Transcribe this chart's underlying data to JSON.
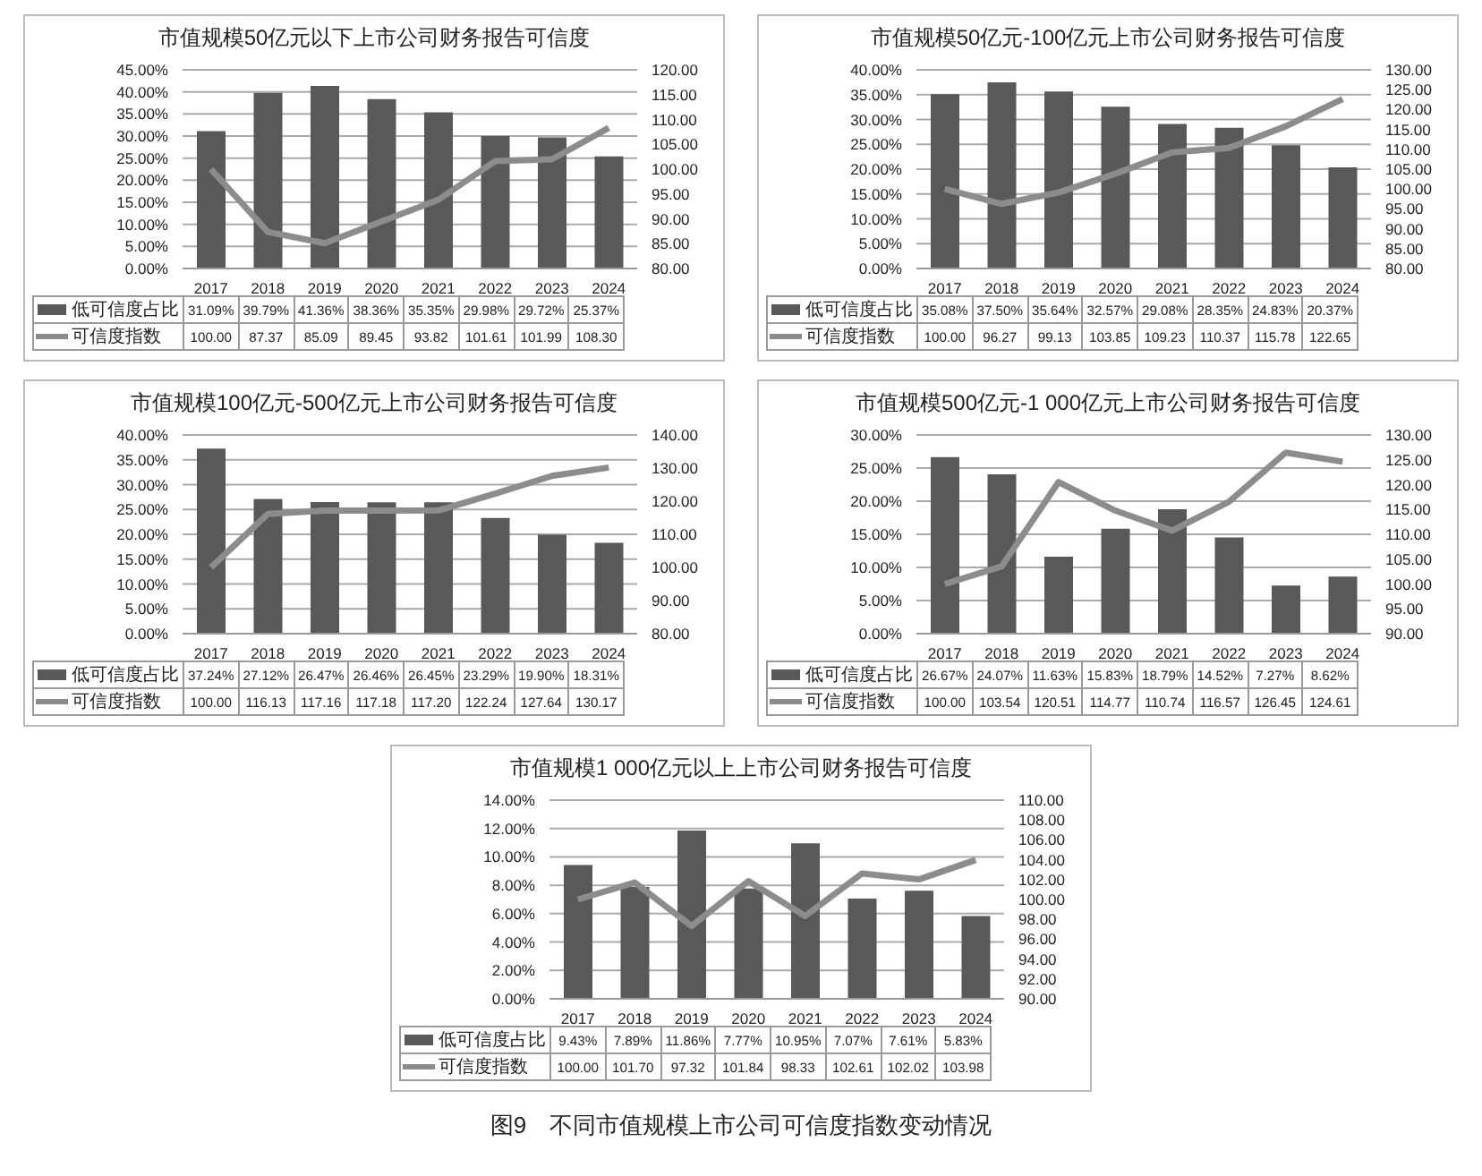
{
  "chart_data": [
    {
      "type": "bar",
      "title": "市值规模50亿元以下上市公司财务报告可信度",
      "categories": [
        "2017",
        "2018",
        "2019",
        "2020",
        "2021",
        "2022",
        "2023",
        "2024"
      ],
      "grid": "y",
      "legend": "bottom",
      "ylim": [
        0,
        45
      ],
      "yticks": [
        {
          "value": 0,
          "label": "0.00%"
        },
        {
          "value": 5,
          "label": "5.00%"
        },
        {
          "value": 10,
          "label": "10.00%"
        },
        {
          "value": 15,
          "label": "15.00%"
        },
        {
          "value": 20,
          "label": "20.00%"
        },
        {
          "value": 25,
          "label": "25.00%"
        },
        {
          "value": 30,
          "label": "30.00%"
        },
        {
          "value": 35,
          "label": "35.00%"
        },
        {
          "value": 40,
          "label": "40.00%"
        },
        {
          "value": 45,
          "label": "45.00%"
        }
      ],
      "y2lim": [
        80,
        120
      ],
      "y2ticks": [
        {
          "value": 80,
          "label": "80.00"
        },
        {
          "value": 85,
          "label": "85.00"
        },
        {
          "value": 90,
          "label": "90.00"
        },
        {
          "value": 95,
          "label": "95.00"
        },
        {
          "value": 100,
          "label": "100.00"
        },
        {
          "value": 105,
          "label": "105.00"
        },
        {
          "value": 110,
          "label": "110.00"
        },
        {
          "value": 115,
          "label": "115.00"
        },
        {
          "value": 120,
          "label": "120.00"
        }
      ],
      "series": [
        {
          "name": "低可信度占比",
          "color": "#595959",
          "values": [
            31.09,
            39.79,
            41.36,
            38.36,
            35.35,
            29.98,
            29.72,
            25.37
          ],
          "value_labels": [
            "31.09%",
            "39.79%",
            "41.36%",
            "38.36%",
            "35.35%",
            "29.98%",
            "29.72%",
            "25.37%"
          ]
        },
        {
          "name": "可信度指数",
          "type": "line",
          "axis": "y2",
          "color": "#8c8c8c",
          "values": [
            100.0,
            87.37,
            85.09,
            89.45,
            93.82,
            101.61,
            101.99,
            108.3
          ],
          "value_labels": [
            "100.00",
            "87.37",
            "85.09",
            "89.45",
            "93.82",
            "101.61",
            "101.99",
            "108.30"
          ]
        }
      ]
    },
    {
      "type": "bar",
      "title": "市值规模50亿元-100亿元上市公司财务报告可信度",
      "categories": [
        "2017",
        "2018",
        "2019",
        "2020",
        "2021",
        "2022",
        "2023",
        "2024"
      ],
      "grid": "y",
      "legend": "bottom",
      "ylim": [
        0,
        40
      ],
      "yticks": [
        {
          "value": 0,
          "label": "0.00%"
        },
        {
          "value": 5,
          "label": "5.00%"
        },
        {
          "value": 10,
          "label": "10.00%"
        },
        {
          "value": 15,
          "label": "15.00%"
        },
        {
          "value": 20,
          "label": "20.00%"
        },
        {
          "value": 25,
          "label": "25.00%"
        },
        {
          "value": 30,
          "label": "30.00%"
        },
        {
          "value": 35,
          "label": "35.00%"
        },
        {
          "value": 40,
          "label": "40.00%"
        }
      ],
      "y2lim": [
        80,
        130
      ],
      "y2ticks": [
        {
          "value": 80,
          "label": "80.00"
        },
        {
          "value": 85,
          "label": "85.00"
        },
        {
          "value": 90,
          "label": "90.00"
        },
        {
          "value": 95,
          "label": "95.00"
        },
        {
          "value": 100,
          "label": "100.00"
        },
        {
          "value": 105,
          "label": "105.00"
        },
        {
          "value": 110,
          "label": "110.00"
        },
        {
          "value": 115,
          "label": "115.00"
        },
        {
          "value": 120,
          "label": "120.00"
        },
        {
          "value": 125,
          "label": "125.00"
        },
        {
          "value": 130,
          "label": "130.00"
        }
      ],
      "series": [
        {
          "name": "低可信度占比",
          "color": "#595959",
          "values": [
            35.08,
            37.5,
            35.64,
            32.57,
            29.08,
            28.35,
            24.83,
            20.37
          ],
          "value_labels": [
            "35.08%",
            "37.50%",
            "35.64%",
            "32.57%",
            "29.08%",
            "28.35%",
            "24.83%",
            "20.37%"
          ]
        },
        {
          "name": "可信度指数",
          "type": "line",
          "axis": "y2",
          "color": "#8c8c8c",
          "values": [
            100.0,
            96.27,
            99.13,
            103.85,
            109.23,
            110.37,
            115.78,
            122.65
          ],
          "value_labels": [
            "100.00",
            "96.27",
            "99.13",
            "103.85",
            "109.23",
            "110.37",
            "115.78",
            "122.65"
          ]
        }
      ]
    },
    {
      "type": "bar",
      "title": "市值规模100亿元-500亿元上市公司财务报告可信度",
      "categories": [
        "2017",
        "2018",
        "2019",
        "2020",
        "2021",
        "2022",
        "2023",
        "2024"
      ],
      "grid": "y",
      "legend": "bottom",
      "ylim": [
        0,
        40
      ],
      "yticks": [
        {
          "value": 0,
          "label": "0.00%"
        },
        {
          "value": 5,
          "label": "5.00%"
        },
        {
          "value": 10,
          "label": "10.00%"
        },
        {
          "value": 15,
          "label": "15.00%"
        },
        {
          "value": 20,
          "label": "20.00%"
        },
        {
          "value": 25,
          "label": "25.00%"
        },
        {
          "value": 30,
          "label": "30.00%"
        },
        {
          "value": 35,
          "label": "35.00%"
        },
        {
          "value": 40,
          "label": "40.00%"
        }
      ],
      "y2lim": [
        80,
        140
      ],
      "y2ticks": [
        {
          "value": 80,
          "label": "80.00"
        },
        {
          "value": 90,
          "label": "90.00"
        },
        {
          "value": 100,
          "label": "100.00"
        },
        {
          "value": 110,
          "label": "110.00"
        },
        {
          "value": 120,
          "label": "120.00"
        },
        {
          "value": 130,
          "label": "130.00"
        },
        {
          "value": 140,
          "label": "140.00"
        }
      ],
      "series": [
        {
          "name": "低可信度占比",
          "color": "#595959",
          "values": [
            37.24,
            27.12,
            26.47,
            26.46,
            26.45,
            23.29,
            19.9,
            18.31
          ],
          "value_labels": [
            "37.24%",
            "27.12%",
            "26.47%",
            "26.46%",
            "26.45%",
            "23.29%",
            "19.90%",
            "18.31%"
          ]
        },
        {
          "name": "可信度指数",
          "type": "line",
          "axis": "y2",
          "color": "#8c8c8c",
          "values": [
            100.0,
            116.13,
            117.16,
            117.18,
            117.2,
            122.24,
            127.64,
            130.17
          ],
          "value_labels": [
            "100.00",
            "116.13",
            "117.16",
            "117.18",
            "117.20",
            "122.24",
            "127.64",
            "130.17"
          ]
        }
      ]
    },
    {
      "type": "bar",
      "title": "市值规模500亿元-1 000亿元上市公司财务报告可信度",
      "categories": [
        "2017",
        "2018",
        "2019",
        "2020",
        "2021",
        "2022",
        "2023",
        "2024"
      ],
      "grid": "y",
      "legend": "bottom",
      "ylim": [
        0,
        30
      ],
      "yticks": [
        {
          "value": 0,
          "label": "0.00%"
        },
        {
          "value": 5,
          "label": "5.00%"
        },
        {
          "value": 10,
          "label": "10.00%"
        },
        {
          "value": 15,
          "label": "15.00%"
        },
        {
          "value": 20,
          "label": "20.00%"
        },
        {
          "value": 25,
          "label": "25.00%"
        },
        {
          "value": 30,
          "label": "30.00%"
        }
      ],
      "y2lim": [
        90,
        130
      ],
      "y2ticks": [
        {
          "value": 90,
          "label": "90.00"
        },
        {
          "value": 95,
          "label": "95.00"
        },
        {
          "value": 100,
          "label": "100.00"
        },
        {
          "value": 105,
          "label": "105.00"
        },
        {
          "value": 110,
          "label": "110.00"
        },
        {
          "value": 115,
          "label": "115.00"
        },
        {
          "value": 120,
          "label": "120.00"
        },
        {
          "value": 125,
          "label": "125.00"
        },
        {
          "value": 130,
          "label": "130.00"
        }
      ],
      "series": [
        {
          "name": "低可信度占比",
          "color": "#595959",
          "values": [
            26.67,
            24.07,
            11.63,
            15.83,
            18.79,
            14.52,
            7.27,
            8.62
          ],
          "value_labels": [
            "26.67%",
            "24.07%",
            "11.63%",
            "15.83%",
            "18.79%",
            "14.52%",
            "7.27%",
            "8.62%"
          ]
        },
        {
          "name": "可信度指数",
          "type": "line",
          "axis": "y2",
          "color": "#8c8c8c",
          "values": [
            100.0,
            103.54,
            120.51,
            114.77,
            110.74,
            116.57,
            126.45,
            124.61
          ],
          "value_labels": [
            "100.00",
            "103.54",
            "120.51",
            "114.77",
            "110.74",
            "116.57",
            "126.45",
            "124.61"
          ]
        }
      ]
    },
    {
      "type": "bar",
      "title": "市值规模1 000亿元以上上市公司财务报告可信度",
      "categories": [
        "2017",
        "2018",
        "2019",
        "2020",
        "2021",
        "2022",
        "2023",
        "2024"
      ],
      "grid": "y",
      "legend": "bottom",
      "ylim": [
        0,
        14
      ],
      "yticks": [
        {
          "value": 0,
          "label": "0.00%"
        },
        {
          "value": 2,
          "label": "2.00%"
        },
        {
          "value": 4,
          "label": "4.00%"
        },
        {
          "value": 6,
          "label": "6.00%"
        },
        {
          "value": 8,
          "label": "8.00%"
        },
        {
          "value": 10,
          "label": "10.00%"
        },
        {
          "value": 12,
          "label": "12.00%"
        },
        {
          "value": 14,
          "label": "14.00%"
        }
      ],
      "y2lim": [
        90,
        110
      ],
      "y2ticks": [
        {
          "value": 90,
          "label": "90.00"
        },
        {
          "value": 92,
          "label": "92.00"
        },
        {
          "value": 94,
          "label": "94.00"
        },
        {
          "value": 96,
          "label": "96.00"
        },
        {
          "value": 98,
          "label": "98.00"
        },
        {
          "value": 100,
          "label": "100.00"
        },
        {
          "value": 102,
          "label": "102.00"
        },
        {
          "value": 104,
          "label": "104.00"
        },
        {
          "value": 106,
          "label": "106.00"
        },
        {
          "value": 108,
          "label": "108.00"
        },
        {
          "value": 110,
          "label": "110.00"
        }
      ],
      "series": [
        {
          "name": "低可信度占比",
          "color": "#595959",
          "values": [
            9.43,
            7.89,
            11.86,
            7.77,
            10.95,
            7.07,
            7.61,
            5.83
          ],
          "value_labels": [
            "9.43%",
            "7.89%",
            "11.86%",
            "7.77%",
            "10.95%",
            "7.07%",
            "7.61%",
            "5.83%"
          ]
        },
        {
          "name": "可信度指数",
          "type": "line",
          "axis": "y2",
          "color": "#8c8c8c",
          "values": [
            100.0,
            101.7,
            97.32,
            101.84,
            98.33,
            102.61,
            102.02,
            103.98
          ],
          "value_labels": [
            "100.00",
            "101.70",
            "97.32",
            "101.84",
            "98.33",
            "102.61",
            "102.02",
            "103.98"
          ]
        }
      ],
      "annotations": [
        "图9　不同市值规模上市公司可信度指数变动情况"
      ]
    }
  ]
}
